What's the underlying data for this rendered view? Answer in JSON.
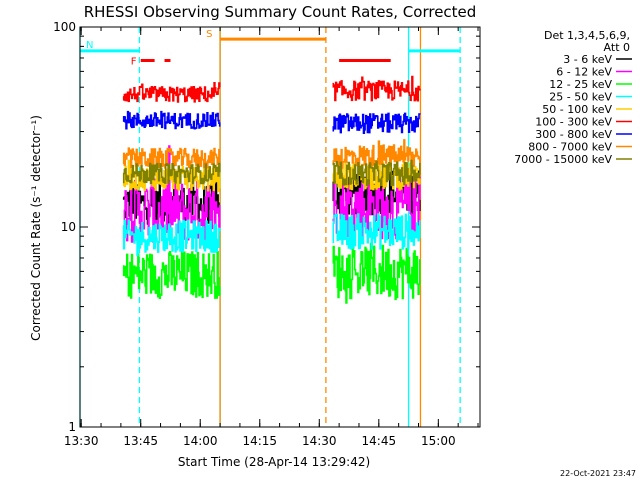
{
  "chart_data": {
    "type": "line",
    "title": "RHESSI Observing Summary Count Rates, Corrected",
    "xlabel": "Start Time (28-Apr-14 13:29:42)",
    "ylabel": "Corrected Count Rate (s⁻¹ detector⁻¹)",
    "y_scale": "log",
    "ylim": [
      1,
      100
    ],
    "xlim": [
      "13:29:42",
      "15:10:30"
    ],
    "x_ticks": [
      "13:30",
      "13:45",
      "14:00",
      "14:15",
      "14:30",
      "14:45",
      "15:00"
    ],
    "y_ticks": [
      "1",
      "10",
      "100"
    ],
    "detector_info": [
      "Det 1,3,4,5,6,9,",
      "Att 0"
    ],
    "series": [
      {
        "name": "3 - 6 keV",
        "color": "#000000",
        "segments": [
          {
            "start": "13:40:30",
            "end": "14:05:00",
            "level": 13.0,
            "noise": 0.1
          },
          {
            "start": "14:33:20",
            "end": "14:55:30",
            "level": 15.0,
            "noise": 0.12
          }
        ]
      },
      {
        "name": "6 - 12 keV",
        "color": "#ff00ff",
        "segments": [
          {
            "start": "13:40:30",
            "end": "14:05:00",
            "level": 12.0,
            "noise": 0.16
          },
          {
            "start": "14:33:20",
            "end": "14:55:30",
            "level": 12.5,
            "noise": 0.16
          }
        ]
      },
      {
        "name": "12 - 25 keV",
        "color": "#00ff00",
        "segments": [
          {
            "start": "13:40:30",
            "end": "14:05:00",
            "level": 5.8,
            "noise": 0.12
          },
          {
            "start": "14:33:20",
            "end": "14:55:30",
            "level": 6.0,
            "noise": 0.14
          }
        ]
      },
      {
        "name": "25 - 50 keV",
        "color": "#00ffff",
        "segments": [
          {
            "start": "13:40:30",
            "end": "14:05:00",
            "level": 9.0,
            "noise": 0.08
          },
          {
            "start": "14:33:20",
            "end": "14:55:30",
            "level": 9.5,
            "noise": 0.09
          }
        ]
      },
      {
        "name": "50 - 100 keV",
        "color": "#ffcc00",
        "segments": [
          {
            "start": "13:40:30",
            "end": "14:05:00",
            "level": 17.5,
            "noise": 0.06
          },
          {
            "start": "14:33:20",
            "end": "14:55:30",
            "level": 18.0,
            "noise": 0.07
          }
        ]
      },
      {
        "name": "100 - 300 keV",
        "color": "#ff0000",
        "segments": [
          {
            "start": "13:40:30",
            "end": "14:05:00",
            "level": 46.0,
            "noise": 0.04
          },
          {
            "start": "14:33:20",
            "end": "14:55:30",
            "level": 48.0,
            "noise": 0.05
          }
        ]
      },
      {
        "name": "300 - 800 keV",
        "color": "#0000ff",
        "segments": [
          {
            "start": "13:40:30",
            "end": "14:05:00",
            "level": 34.0,
            "noise": 0.04
          },
          {
            "start": "14:33:20",
            "end": "14:55:30",
            "level": 33.0,
            "noise": 0.05
          }
        ]
      },
      {
        "name": "800 - 7000 keV",
        "color": "#ff8800",
        "segments": [
          {
            "start": "13:40:30",
            "end": "14:05:00",
            "level": 22.0,
            "noise": 0.05
          },
          {
            "start": "14:33:20",
            "end": "14:55:30",
            "level": 22.5,
            "noise": 0.06
          }
        ]
      },
      {
        "name": "7000 - 15000 keV",
        "color": "#808000",
        "segments": [
          {
            "start": "13:40:30",
            "end": "14:05:00",
            "level": 18.5,
            "noise": 0.05
          },
          {
            "start": "14:33:20",
            "end": "14:55:30",
            "level": 18.5,
            "noise": 0.06
          }
        ]
      }
    ],
    "flag_bars": [
      {
        "label": "N",
        "color": "#00ffff",
        "y": 76,
        "ranges": [
          [
            "13:29:42",
            "13:44:40"
          ],
          [
            "14:52:30",
            "15:05:30"
          ]
        ]
      },
      {
        "label": "S",
        "color": "#ff8800",
        "y": 87,
        "ranges": [
          [
            "14:05:00",
            "14:31:40"
          ]
        ]
      },
      {
        "label": "F",
        "color": "#ff0000",
        "y": 68,
        "ranges": [
          [
            "13:45:00",
            "13:48:30"
          ],
          [
            "13:51:00",
            "13:52:30"
          ],
          [
            "14:35:00",
            "14:48:00"
          ]
        ]
      }
    ],
    "vlines": [
      {
        "time": "13:29:42",
        "color": "#00ffff",
        "style": "solid"
      },
      {
        "time": "13:44:40",
        "color": "#00ffff",
        "style": "dashed"
      },
      {
        "time": "14:05:00",
        "color": "#00ffff",
        "style": "solid"
      },
      {
        "time": "14:05:00",
        "color": "#ff8800",
        "style": "solid"
      },
      {
        "time": "14:31:40",
        "color": "#ff8800",
        "style": "dashed"
      },
      {
        "time": "14:52:30",
        "color": "#00ffff",
        "style": "solid"
      },
      {
        "time": "15:05:30",
        "color": "#00ffff",
        "style": "dashed"
      },
      {
        "time": "14:55:30",
        "color": "#ff8800",
        "style": "solid"
      }
    ],
    "grid": false,
    "legend_position": "right"
  },
  "timestamp": "22-Oct-2021 23:47"
}
